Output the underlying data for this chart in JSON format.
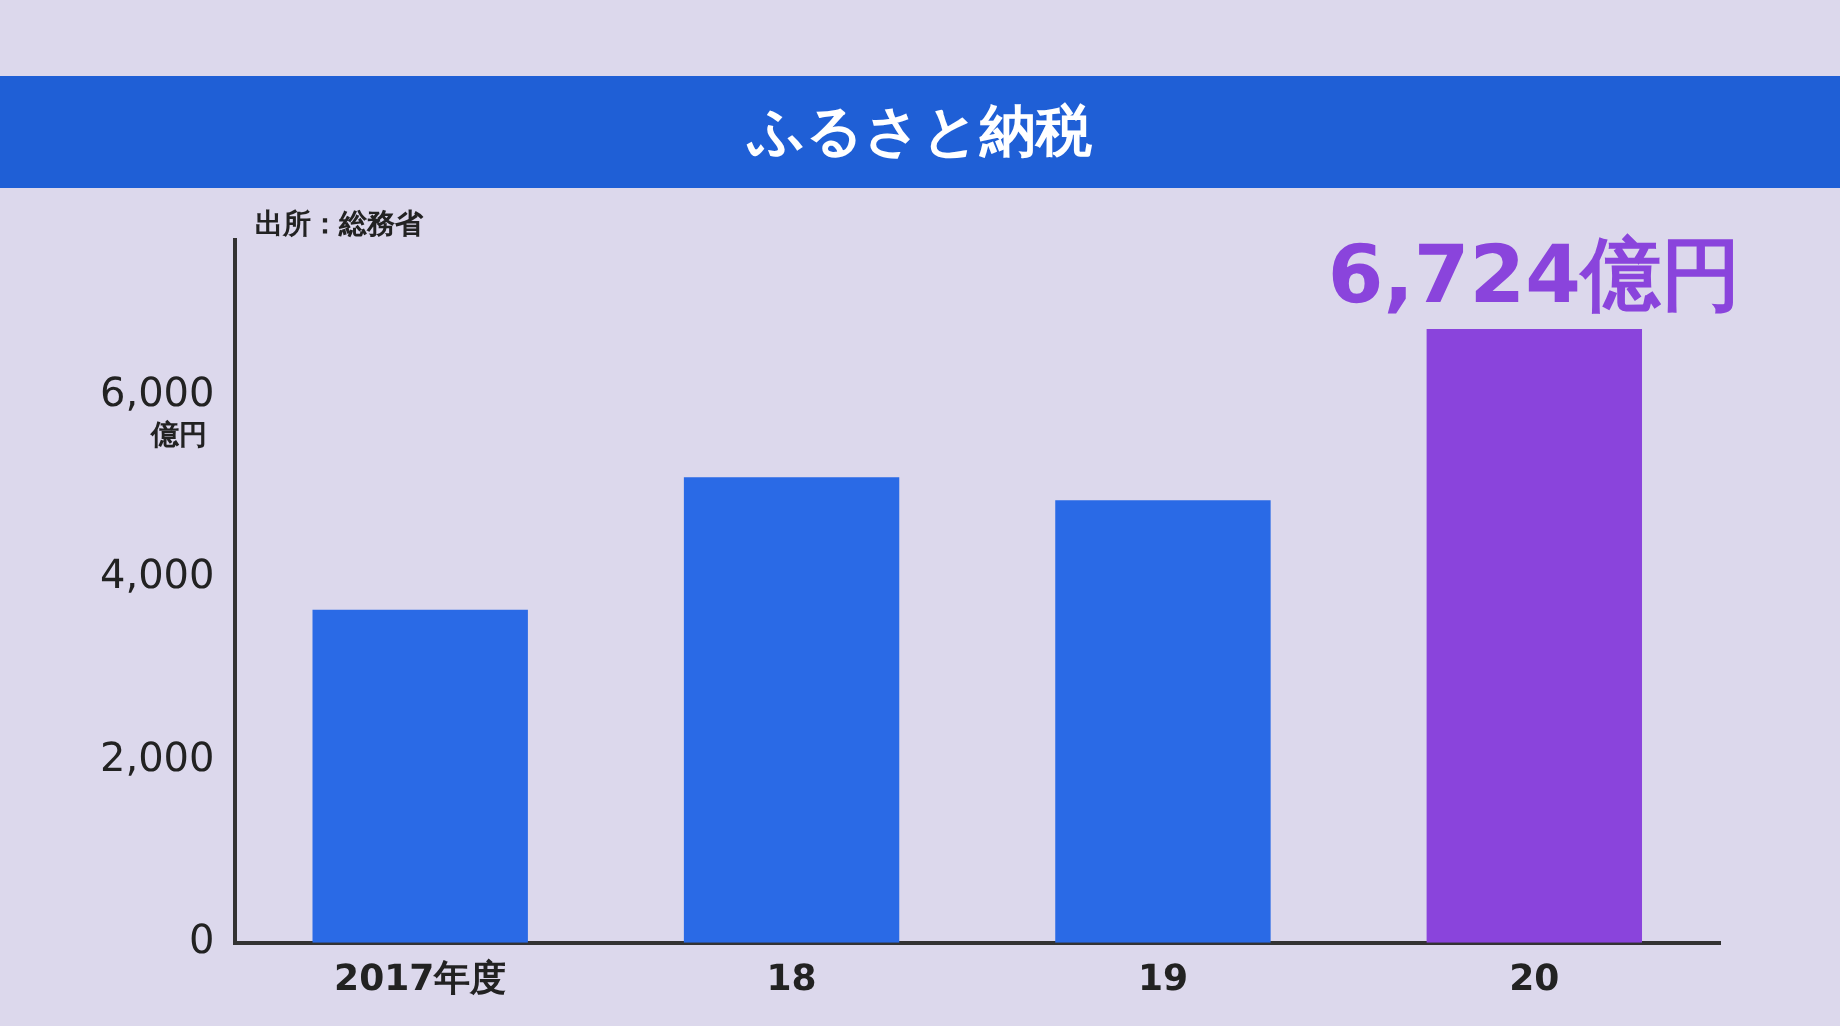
{
  "chart_data": {
    "type": "bar",
    "title": "ふるさと納税",
    "ylabel": "億円",
    "annotations": [
      "出所：総務省"
    ],
    "categories": [
      "2017年度",
      "18",
      "19",
      "20"
    ],
    "values": [
      3650,
      5100,
      4850,
      6724
    ],
    "colors": [
      "#2a6ae6",
      "#2a6ae6",
      "#2a6ae6",
      "#8a44dc"
    ],
    "value_labels": [
      null,
      null,
      null,
      "6,724億円"
    ],
    "ylim": [
      0,
      7700
    ],
    "yticks": [
      {
        "value": 0,
        "label": "0"
      },
      {
        "value": 2000,
        "label": "2,000"
      },
      {
        "value": 4000,
        "label": "4,000"
      },
      {
        "value": 6000,
        "label": "6,000"
      }
    ],
    "grid": false,
    "legend": false
  }
}
